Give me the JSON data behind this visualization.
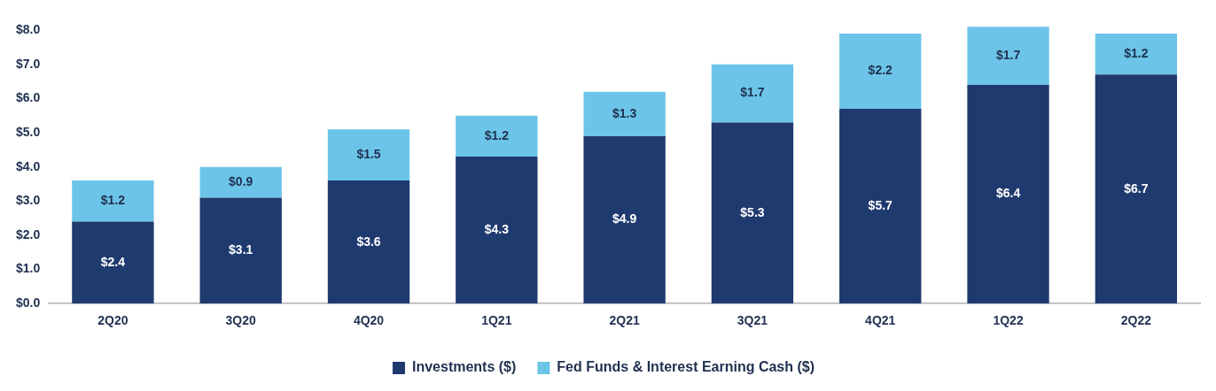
{
  "chart_data": {
    "type": "bar",
    "stacked": true,
    "categories": [
      "2Q20",
      "3Q20",
      "4Q20",
      "1Q21",
      "2Q21",
      "3Q21",
      "4Q21",
      "1Q22",
      "2Q22"
    ],
    "series": [
      {
        "name": "Investments ($)",
        "color": "#1f3a6e",
        "values": [
          2.4,
          3.1,
          3.6,
          4.3,
          4.9,
          5.3,
          5.7,
          6.4,
          6.7
        ],
        "value_labels": [
          "$2.4",
          "$3.1",
          "$3.6",
          "$4.3",
          "$4.9",
          "$5.3",
          "$5.7",
          "$6.4",
          "$6.7"
        ]
      },
      {
        "name": "Fed Funds & Interest Earning Cash ($)",
        "color": "#6cc5e8",
        "values": [
          1.2,
          0.9,
          1.5,
          1.2,
          1.3,
          1.7,
          2.2,
          1.7,
          1.2
        ],
        "value_labels": [
          "$1.2",
          "$0.9",
          "$1.5",
          "$1.2",
          "$1.3",
          "$1.7",
          "$2.2",
          "$1.7",
          "$1.2"
        ]
      }
    ],
    "ylim": [
      0,
      8.2
    ],
    "yticks": [
      {
        "value": 0,
        "label": "$0.0"
      },
      {
        "value": 1,
        "label": "$1.0"
      },
      {
        "value": 2,
        "label": "$2.0"
      },
      {
        "value": 3,
        "label": "$3.0"
      },
      {
        "value": 4,
        "label": "$4.0"
      },
      {
        "value": 5,
        "label": "$5.0"
      },
      {
        "value": 6,
        "label": "$6.0"
      },
      {
        "value": 7,
        "label": "$7.0"
      },
      {
        "value": 8,
        "label": "$8.0"
      }
    ],
    "grid": false,
    "legend": "bottom"
  }
}
